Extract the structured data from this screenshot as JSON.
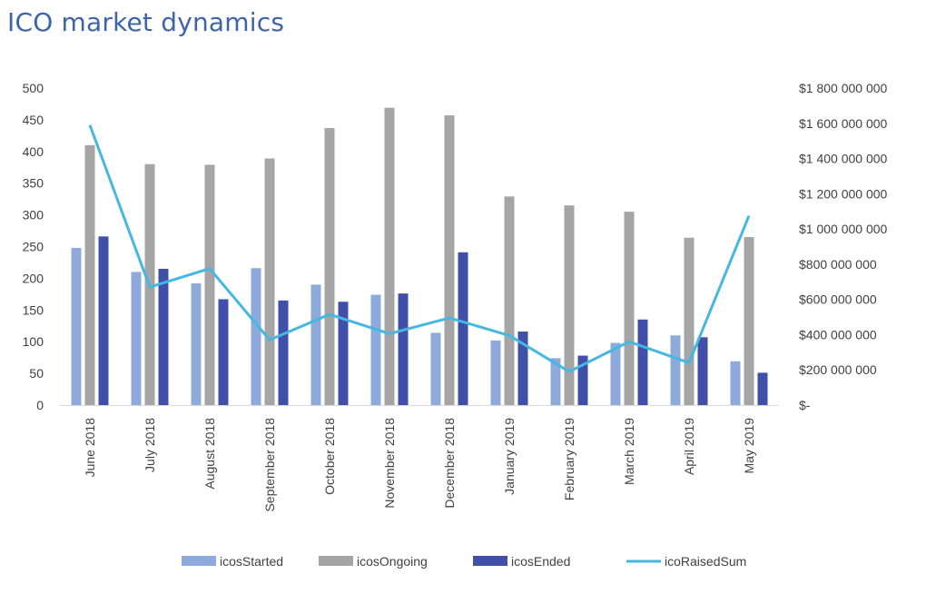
{
  "title": "ICO market dynamics",
  "chart_data": {
    "type": "bar",
    "categories": [
      "June 2018",
      "July 2018",
      "August 2018",
      "September 2018",
      "October 2018",
      "November 2018",
      "December 2018",
      "January 2019",
      "February 2019",
      "March 2019",
      "April 2019",
      "May 2019"
    ],
    "series": [
      {
        "name": "icosStarted",
        "type": "bar",
        "axis": "left",
        "color": "#8eaadb",
        "values": [
          248,
          210,
          192,
          216,
          190,
          174,
          114,
          102,
          74,
          98,
          110,
          69
        ]
      },
      {
        "name": "icosOngoing",
        "type": "bar",
        "axis": "left",
        "color": "#a5a5a5",
        "values": [
          410,
          380,
          379,
          389,
          437,
          469,
          457,
          329,
          315,
          305,
          264,
          265
        ]
      },
      {
        "name": "icosEnded",
        "type": "bar",
        "axis": "left",
        "color": "#4050a8",
        "values": [
          266,
          215,
          167,
          165,
          163,
          176,
          241,
          116,
          78,
          135,
          107,
          51
        ]
      },
      {
        "name": "icoRaisedSum",
        "type": "line",
        "axis": "right",
        "color": "#45b7e3",
        "values": [
          1590000000,
          670000000,
          775000000,
          370000000,
          515000000,
          405000000,
          495000000,
          395000000,
          190000000,
          360000000,
          240000000,
          1075000000
        ]
      }
    ],
    "left_axis": {
      "ylim": [
        0,
        500
      ],
      "ticks": [
        "0",
        "50",
        "100",
        "150",
        "200",
        "250",
        "300",
        "350",
        "400",
        "450",
        "500"
      ]
    },
    "right_axis": {
      "ylim": [
        0,
        1800000000
      ],
      "ticks": [
        "$-",
        "$200 000 000",
        "$400 000 000",
        "$600 000 000",
        "$800 000 000",
        "$1 000 000 000",
        "$1 200 000 000",
        "$1 400 000 000",
        "$1 600 000 000",
        "$1 800 000 000"
      ]
    },
    "grid": false,
    "legend_position": "bottom"
  }
}
